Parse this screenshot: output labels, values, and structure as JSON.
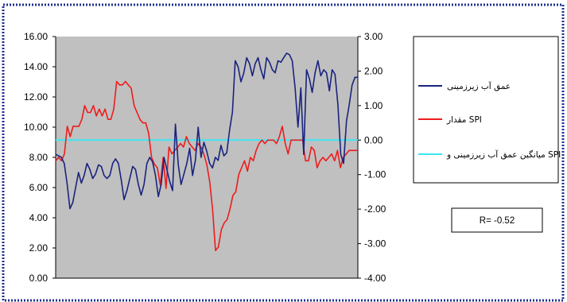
{
  "chart_data": {
    "type": "line",
    "left_axis": {
      "ticks": [
        "16.00",
        "14.00",
        "12.00",
        "10.00",
        "8.00",
        "6.00",
        "4.00",
        "2.00",
        "0.00"
      ],
      "range": [
        0,
        16
      ]
    },
    "right_axis": {
      "ticks": [
        "3.00",
        "2.00",
        "1.00",
        "0.00",
        "-1.00",
        "-2.00",
        "-3.00",
        "-4.00"
      ],
      "range": [
        -4,
        3
      ]
    },
    "series": [
      {
        "name": "عمق آب زیرزمینی",
        "axis": "left",
        "color": "#1a237e",
        "values": [
          8.2,
          8.1,
          8.0,
          7.6,
          6.3,
          4.6,
          5.0,
          6.0,
          7.0,
          6.3,
          6.8,
          7.6,
          7.2,
          6.6,
          6.9,
          7.5,
          7.4,
          6.8,
          6.6,
          6.8,
          7.6,
          7.9,
          7.6,
          6.5,
          5.2,
          5.8,
          6.6,
          7.4,
          7.2,
          6.2,
          5.5,
          6.2,
          7.6,
          8.0,
          7.7,
          6.8,
          5.4,
          6.2,
          8.0,
          7.2,
          6.4,
          5.8,
          10.2,
          7.5,
          6.2,
          6.9,
          7.6,
          8.6,
          6.8,
          7.8,
          10.0,
          8.0,
          9.0,
          8.4,
          7.6,
          7.3,
          8.0,
          7.8,
          8.8,
          8.1,
          8.3,
          9.8,
          11.0,
          14.4,
          14.0,
          13.0,
          13.6,
          14.6,
          14.2,
          13.4,
          14.2,
          14.6,
          13.8,
          13.2,
          14.6,
          14.3,
          13.8,
          13.6,
          14.4,
          14.3,
          14.6,
          14.9,
          14.8,
          14.4,
          12.6,
          10.0,
          12.6,
          8.2,
          13.8,
          13.2,
          12.3,
          13.6,
          14.4,
          13.4,
          13.8,
          13.6,
          12.4,
          13.8,
          13.5,
          11.5,
          8.2,
          7.6,
          10.4,
          11.5,
          12.8,
          13.3,
          13.3
        ]
      },
      {
        "name": "مقدار SPI",
        "axis": "right",
        "color": "#ee1c1c",
        "values": [
          -0.6,
          -0.5,
          -0.6,
          -0.4,
          0.4,
          0.1,
          0.4,
          0.4,
          0.4,
          0.6,
          1.0,
          0.8,
          0.8,
          1.0,
          0.7,
          0.9,
          0.7,
          0.9,
          0.6,
          0.6,
          0.9,
          1.7,
          1.6,
          1.6,
          1.7,
          1.6,
          1.5,
          1.0,
          0.8,
          0.6,
          0.5,
          0.5,
          0.2,
          -0.5,
          -0.7,
          -0.8,
          -1.3,
          -0.5,
          -1.4,
          -0.2,
          -0.4,
          -0.3,
          -0.2,
          -0.1,
          -0.2,
          0.1,
          -0.1,
          -0.2,
          -0.3,
          -0.1,
          -0.2,
          -0.4,
          -0.7,
          -1.2,
          -2.0,
          -3.2,
          -3.1,
          -2.6,
          -2.4,
          -2.3,
          -2.0,
          -1.6,
          -1.5,
          -1.0,
          -0.8,
          -0.6,
          -0.9,
          -0.5,
          -0.6,
          -0.3,
          -0.1,
          0.0,
          -0.1,
          0.0,
          0.0,
          0.0,
          -0.1,
          0.1,
          0.4,
          -0.1,
          -0.4,
          0.0,
          0.0,
          0.0,
          0.0,
          0.0,
          -0.6,
          -0.6,
          -0.2,
          -0.3,
          -0.8,
          -0.6,
          -0.5,
          -0.6,
          -0.5,
          -0.4,
          -0.6,
          -0.3,
          -0.8,
          -0.5,
          -0.4,
          -0.3,
          -0.3,
          -0.3,
          -0.3
        ]
      },
      {
        "name": "میانگین عمق آب زیرزمینی و SPI",
        "axis": "right",
        "color": "#3ee5f3",
        "values": [
          0.0,
          0.0
        ]
      }
    ],
    "annotation": "R= -0.52",
    "grid": false,
    "legend_position": "right"
  }
}
